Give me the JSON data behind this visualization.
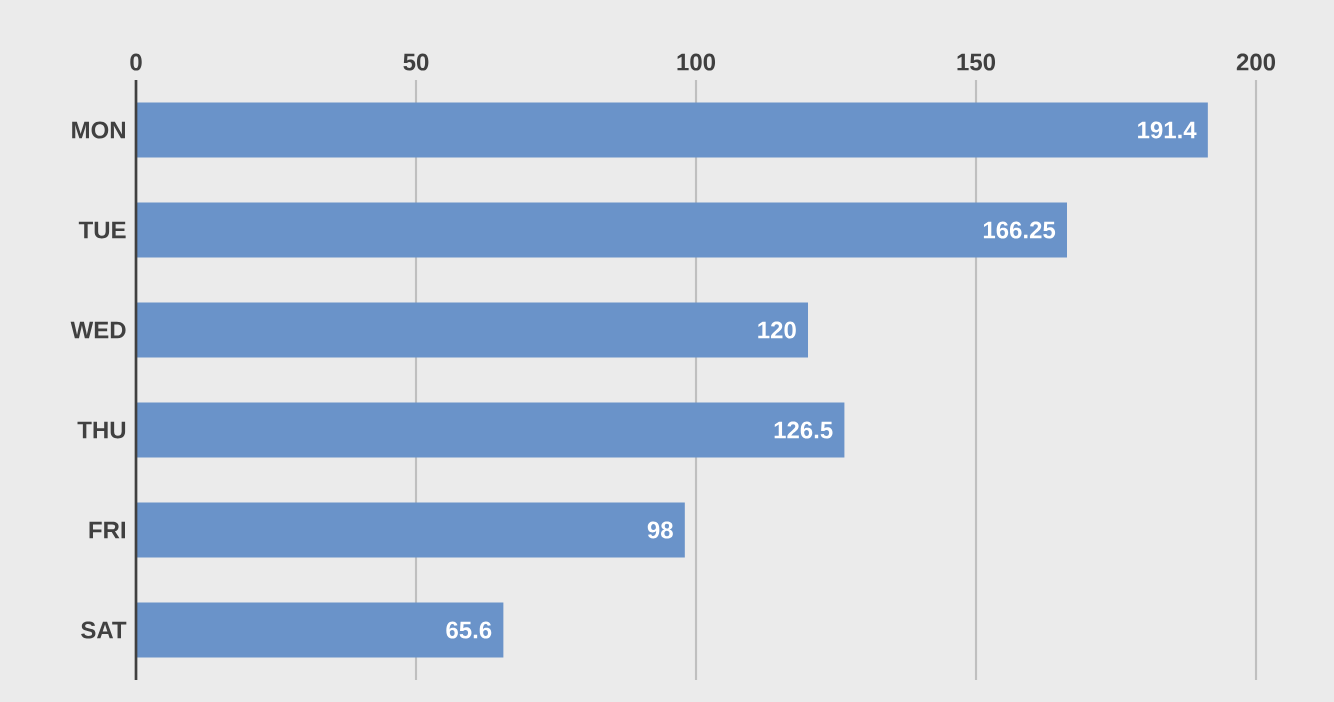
{
  "chart_data": {
    "type": "bar",
    "orientation": "horizontal",
    "categories": [
      "MON",
      "TUE",
      "WED",
      "THU",
      "FRI",
      "SAT"
    ],
    "values": [
      191.4,
      166.25,
      120,
      126.5,
      98,
      65.6
    ],
    "color": "#6a93c9",
    "xlim": [
      0,
      200
    ],
    "xticks": [
      0,
      50,
      100,
      150,
      200
    ],
    "grid": "x",
    "data_labels": true
  }
}
